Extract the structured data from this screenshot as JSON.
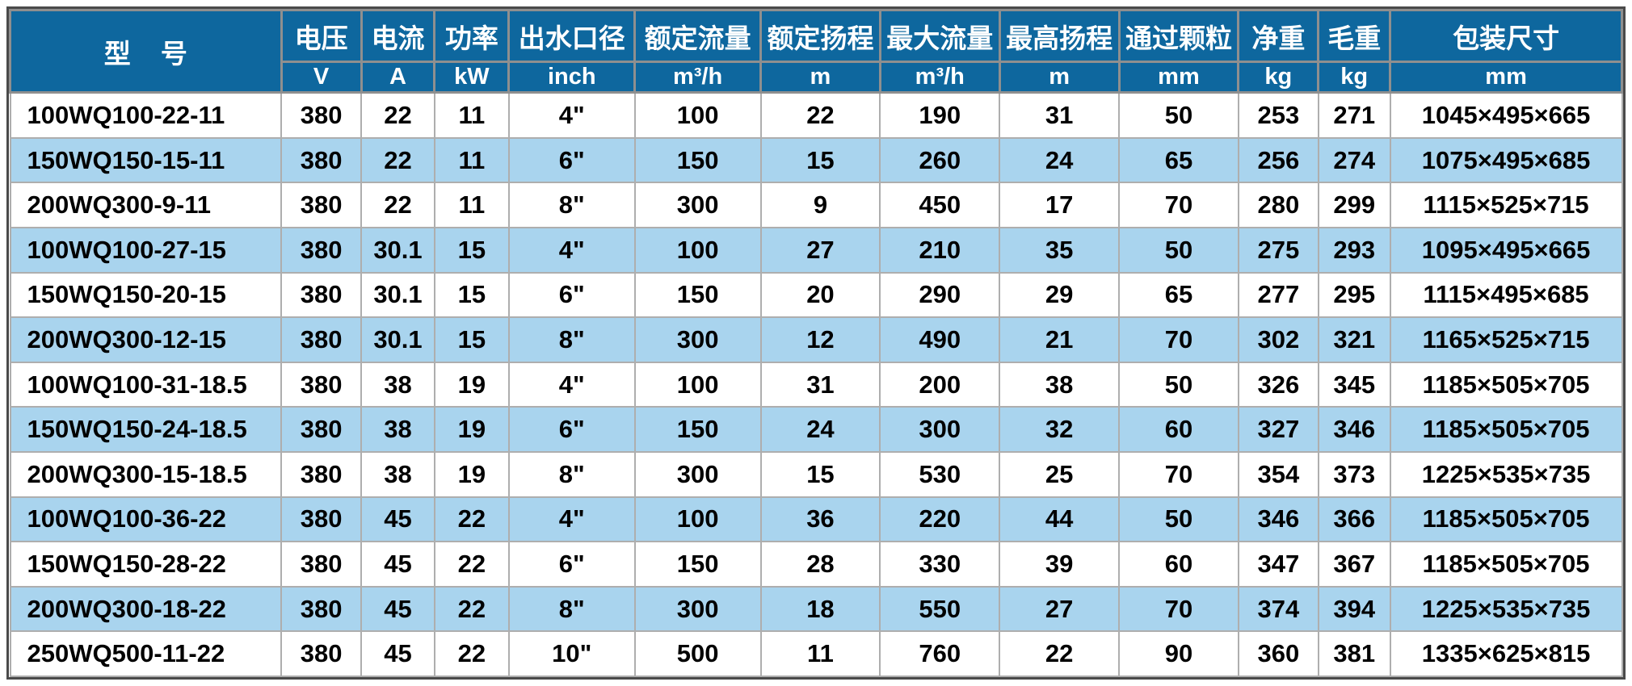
{
  "table": {
    "model_label": "型  号",
    "columns": [
      {
        "key": "voltage",
        "name": "电压",
        "unit": "V"
      },
      {
        "key": "current",
        "name": "电流",
        "unit": "A"
      },
      {
        "key": "power",
        "name": "功率",
        "unit": "kW"
      },
      {
        "key": "outlet",
        "name": "出水口径",
        "unit": "inch"
      },
      {
        "key": "rated-flow",
        "name": "额定流量",
        "unit": "m³/h"
      },
      {
        "key": "rated-head",
        "name": "额定扬程",
        "unit": "m"
      },
      {
        "key": "max-flow",
        "name": "最大流量",
        "unit": "m³/h"
      },
      {
        "key": "max-head",
        "name": "最高扬程",
        "unit": "m"
      },
      {
        "key": "particle",
        "name": "通过颗粒",
        "unit": "mm"
      },
      {
        "key": "net-weight",
        "name": "净重",
        "unit": "kg"
      },
      {
        "key": "gross-weight",
        "name": "毛重",
        "unit": "kg"
      },
      {
        "key": "package-size",
        "name": "包装尺寸",
        "unit": "mm"
      }
    ],
    "rows": [
      [
        "100WQ100-22-11",
        "380",
        "22",
        "11",
        "4\"",
        "100",
        "22",
        "190",
        "31",
        "50",
        "253",
        "271",
        "1045×495×665"
      ],
      [
        "150WQ150-15-11",
        "380",
        "22",
        "11",
        "6\"",
        "150",
        "15",
        "260",
        "24",
        "65",
        "256",
        "274",
        "1075×495×685"
      ],
      [
        "200WQ300-9-11",
        "380",
        "22",
        "11",
        "8\"",
        "300",
        "9",
        "450",
        "17",
        "70",
        "280",
        "299",
        "1115×525×715"
      ],
      [
        "100WQ100-27-15",
        "380",
        "30.1",
        "15",
        "4\"",
        "100",
        "27",
        "210",
        "35",
        "50",
        "275",
        "293",
        "1095×495×665"
      ],
      [
        "150WQ150-20-15",
        "380",
        "30.1",
        "15",
        "6\"",
        "150",
        "20",
        "290",
        "29",
        "65",
        "277",
        "295",
        "1115×495×685"
      ],
      [
        "200WQ300-12-15",
        "380",
        "30.1",
        "15",
        "8\"",
        "300",
        "12",
        "490",
        "21",
        "70",
        "302",
        "321",
        "1165×525×715"
      ],
      [
        "100WQ100-31-18.5",
        "380",
        "38",
        "19",
        "4\"",
        "100",
        "31",
        "200",
        "38",
        "50",
        "326",
        "345",
        "1185×505×705"
      ],
      [
        "150WQ150-24-18.5",
        "380",
        "38",
        "19",
        "6\"",
        "150",
        "24",
        "300",
        "32",
        "60",
        "327",
        "346",
        "1185×505×705"
      ],
      [
        "200WQ300-15-18.5",
        "380",
        "38",
        "19",
        "8\"",
        "300",
        "15",
        "530",
        "25",
        "70",
        "354",
        "373",
        "1225×535×735"
      ],
      [
        "100WQ100-36-22",
        "380",
        "45",
        "22",
        "4\"",
        "100",
        "36",
        "220",
        "44",
        "50",
        "346",
        "366",
        "1185×505×705"
      ],
      [
        "150WQ150-28-22",
        "380",
        "45",
        "22",
        "6\"",
        "150",
        "28",
        "330",
        "39",
        "60",
        "347",
        "367",
        "1185×505×705"
      ],
      [
        "200WQ300-18-22",
        "380",
        "45",
        "22",
        "8\"",
        "300",
        "18",
        "550",
        "27",
        "70",
        "374",
        "394",
        "1225×535×735"
      ],
      [
        "250WQ500-11-22",
        "380",
        "45",
        "22",
        "10\"",
        "500",
        "11",
        "760",
        "22",
        "90",
        "360",
        "381",
        "1335×625×815"
      ]
    ],
    "colors": {
      "header_bg": "#0e679e",
      "header_text": "#ffffff",
      "row_bg": "#ffffff",
      "row_alt_bg": "#a9d4ee",
      "body_text": "#000000"
    }
  }
}
